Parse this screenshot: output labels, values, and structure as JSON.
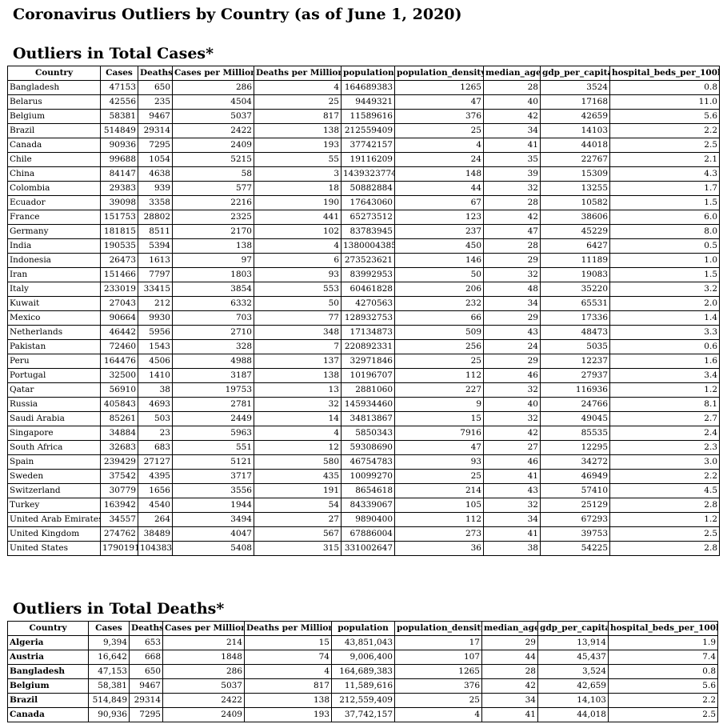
{
  "title": "Coronavirus Outliers by Country (as of June 1, 2020)",
  "sections": [
    {
      "heading": "Outliers in Total Cases*",
      "table": {
        "columns": [
          "Country",
          "Cases",
          "Deaths",
          "Cases per Million",
          "Deaths per Million",
          "population",
          "population_density",
          "median_age",
          "gdp_per_capita",
          "hospital_beds_per_100k"
        ],
        "rows": [
          [
            "Bangladesh",
            "47153",
            "650",
            "286",
            "4",
            "164689383",
            "1265",
            "28",
            "3524",
            "0.8"
          ],
          [
            "Belarus",
            "42556",
            "235",
            "4504",
            "25",
            "9449321",
            "47",
            "40",
            "17168",
            "11.0"
          ],
          [
            "Belgium",
            "58381",
            "9467",
            "5037",
            "817",
            "11589616",
            "376",
            "42",
            "42659",
            "5.6"
          ],
          [
            "Brazil",
            "514849",
            "29314",
            "2422",
            "138",
            "212559409",
            "25",
            "34",
            "14103",
            "2.2"
          ],
          [
            "Canada",
            "90936",
            "7295",
            "2409",
            "193",
            "37742157",
            "4",
            "41",
            "44018",
            "2.5"
          ],
          [
            "Chile",
            "99688",
            "1054",
            "5215",
            "55",
            "19116209",
            "24",
            "35",
            "22767",
            "2.1"
          ],
          [
            "China",
            "84147",
            "4638",
            "58",
            "3",
            "1439323774",
            "148",
            "39",
            "15309",
            "4.3"
          ],
          [
            "Colombia",
            "29383",
            "939",
            "577",
            "18",
            "50882884",
            "44",
            "32",
            "13255",
            "1.7"
          ],
          [
            "Ecuador",
            "39098",
            "3358",
            "2216",
            "190",
            "17643060",
            "67",
            "28",
            "10582",
            "1.5"
          ],
          [
            "France",
            "151753",
            "28802",
            "2325",
            "441",
            "65273512",
            "123",
            "42",
            "38606",
            "6.0"
          ],
          [
            "Germany",
            "181815",
            "8511",
            "2170",
            "102",
            "83783945",
            "237",
            "47",
            "45229",
            "8.0"
          ],
          [
            "India",
            "190535",
            "5394",
            "138",
            "4",
            "1380004385",
            "450",
            "28",
            "6427",
            "0.5"
          ],
          [
            "Indonesia",
            "26473",
            "1613",
            "97",
            "6",
            "273523621",
            "146",
            "29",
            "11189",
            "1.0"
          ],
          [
            "Iran",
            "151466",
            "7797",
            "1803",
            "93",
            "83992953",
            "50",
            "32",
            "19083",
            "1.5"
          ],
          [
            "Italy",
            "233019",
            "33415",
            "3854",
            "553",
            "60461828",
            "206",
            "48",
            "35220",
            "3.2"
          ],
          [
            "Kuwait",
            "27043",
            "212",
            "6332",
            "50",
            "4270563",
            "232",
            "34",
            "65531",
            "2.0"
          ],
          [
            "Mexico",
            "90664",
            "9930",
            "703",
            "77",
            "128932753",
            "66",
            "29",
            "17336",
            "1.4"
          ],
          [
            "Netherlands",
            "46442",
            "5956",
            "2710",
            "348",
            "17134873",
            "509",
            "43",
            "48473",
            "3.3"
          ],
          [
            "Pakistan",
            "72460",
            "1543",
            "328",
            "7",
            "220892331",
            "256",
            "24",
            "5035",
            "0.6"
          ],
          [
            "Peru",
            "164476",
            "4506",
            "4988",
            "137",
            "32971846",
            "25",
            "29",
            "12237",
            "1.6"
          ],
          [
            "Portugal",
            "32500",
            "1410",
            "3187",
            "138",
            "10196707",
            "112",
            "46",
            "27937",
            "3.4"
          ],
          [
            "Qatar",
            "56910",
            "38",
            "19753",
            "13",
            "2881060",
            "227",
            "32",
            "116936",
            "1.2"
          ],
          [
            "Russia",
            "405843",
            "4693",
            "2781",
            "32",
            "145934460",
            "9",
            "40",
            "24766",
            "8.1"
          ],
          [
            "Saudi Arabia",
            "85261",
            "503",
            "2449",
            "14",
            "34813867",
            "15",
            "32",
            "49045",
            "2.7"
          ],
          [
            "Singapore",
            "34884",
            "23",
            "5963",
            "4",
            "5850343",
            "7916",
            "42",
            "85535",
            "2.4"
          ],
          [
            "South Africa",
            "32683",
            "683",
            "551",
            "12",
            "59308690",
            "47",
            "27",
            "12295",
            "2.3"
          ],
          [
            "Spain",
            "239429",
            "27127",
            "5121",
            "580",
            "46754783",
            "93",
            "46",
            "34272",
            "3.0"
          ],
          [
            "Sweden",
            "37542",
            "4395",
            "3717",
            "435",
            "10099270",
            "25",
            "41",
            "46949",
            "2.2"
          ],
          [
            "Switzerland",
            "30779",
            "1656",
            "3556",
            "191",
            "8654618",
            "214",
            "43",
            "57410",
            "4.5"
          ],
          [
            "Turkey",
            "163942",
            "4540",
            "1944",
            "54",
            "84339067",
            "105",
            "32",
            "25129",
            "2.8"
          ],
          [
            "United Arab Emirates",
            "34557",
            "264",
            "3494",
            "27",
            "9890400",
            "112",
            "34",
            "67293",
            "1.2"
          ],
          [
            "United Kingdom",
            "274762",
            "38489",
            "4047",
            "567",
            "67886004",
            "273",
            "41",
            "39753",
            "2.5"
          ],
          [
            "United States",
            "1790191",
            "104383",
            "5408",
            "315",
            "331002647",
            "36",
            "38",
            "54225",
            "2.8"
          ]
        ]
      }
    },
    {
      "heading": "Outliers in Total Deaths*",
      "table": {
        "columns": [
          "Country",
          "Cases",
          "Deaths",
          "Cases per Million",
          "Deaths per Million",
          "population",
          "population_density",
          "median_age",
          "gdp_per_capita",
          "hospital_beds_per_100k"
        ],
        "rows": [
          [
            "Algeria",
            "9,394",
            "653",
            "214",
            "15",
            "43,851,043",
            "17",
            "29",
            "13,914",
            "1.9"
          ],
          [
            "Austria",
            "16,642",
            "668",
            "1848",
            "74",
            "9,006,400",
            "107",
            "44",
            "45,437",
            "7.4"
          ],
          [
            "Bangladesh",
            "47,153",
            "650",
            "286",
            "4",
            "164,689,383",
            "1265",
            "28",
            "3,524",
            "0.8"
          ],
          [
            "Belgium",
            "58,381",
            "9467",
            "5037",
            "817",
            "11,589,616",
            "376",
            "42",
            "42,659",
            "5.6"
          ],
          [
            "Brazil",
            "514,849",
            "29314",
            "2422",
            "138",
            "212,559,409",
            "25",
            "34",
            "14,103",
            "2.2"
          ],
          [
            "Canada",
            "90,936",
            "7295",
            "2409",
            "193",
            "37,742,157",
            "4",
            "41",
            "44,018",
            "2.5"
          ]
        ]
      }
    }
  ]
}
